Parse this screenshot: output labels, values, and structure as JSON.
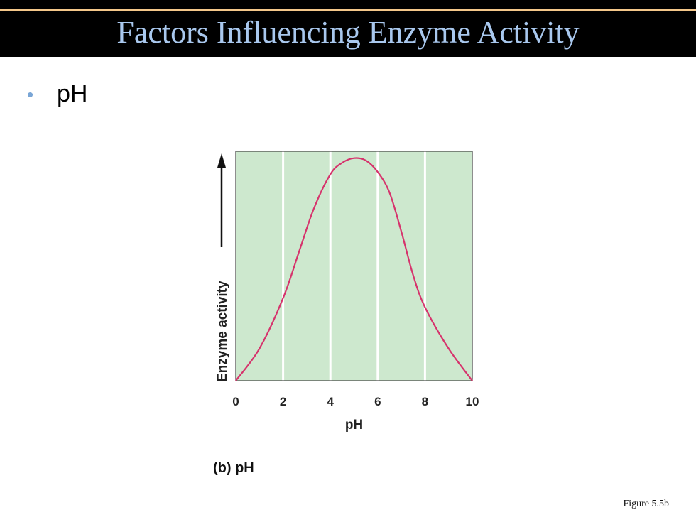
{
  "slide": {
    "title": "Factors Influencing Enzyme Activity",
    "bullet": "pH",
    "bullet_marker": "•",
    "figure_caption": "(b) pH",
    "figure_ref": "Figure 5.5b",
    "colors": {
      "title_bar": "#000000",
      "title_text": "#a9c8ee",
      "title_rule": "#f4c78a",
      "plot_background": "#cde8ce",
      "curve": "#d6336c",
      "gridline": "#ffffff"
    }
  },
  "chart_data": {
    "type": "line",
    "title": "",
    "xlabel": "pH",
    "ylabel": "Enzyme activity",
    "xlim": [
      0,
      10
    ],
    "ylim": [
      0,
      1
    ],
    "x_ticks": [
      0,
      2,
      4,
      6,
      8,
      10
    ],
    "grid": "vertical",
    "y_axis_arrow": true,
    "series": [
      {
        "x": [
          0,
          1,
          2,
          2.7,
          3.3,
          4,
          4.5,
          5,
          5.5,
          6,
          6.5,
          7,
          7.5,
          8,
          9,
          10
        ],
        "y": [
          0,
          0.14,
          0.36,
          0.57,
          0.75,
          0.9,
          0.95,
          0.97,
          0.96,
          0.91,
          0.82,
          0.65,
          0.46,
          0.32,
          0.14,
          0
        ]
      }
    ]
  }
}
